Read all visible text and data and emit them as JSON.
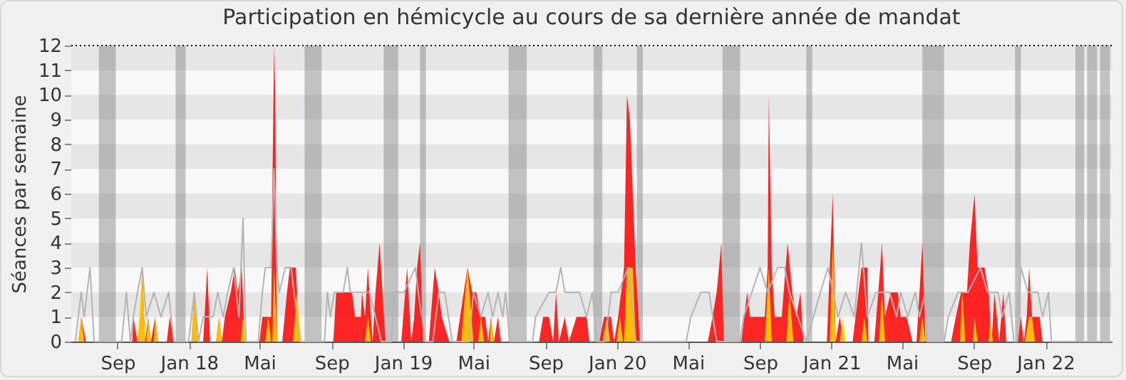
{
  "chart_data": {
    "type": "area",
    "title": "Participation en hémicycle au cours de sa dernière année de mandat",
    "ylabel": "Séances par semaine",
    "xlim": [
      "2017-06-14",
      "2022-04-24"
    ],
    "xticks": [
      {
        "value": "2017-09-01",
        "label": "Sep"
      },
      {
        "value": "2018-01-01",
        "label": "Jan 18"
      },
      {
        "value": "2018-05-01",
        "label": "Mai"
      },
      {
        "value": "2018-09-01",
        "label": "Sep"
      },
      {
        "value": "2019-01-01",
        "label": "Jan 19"
      },
      {
        "value": "2019-05-01",
        "label": "Mai"
      },
      {
        "value": "2019-09-01",
        "label": "Sep"
      },
      {
        "value": "2020-01-01",
        "label": "Jan 20"
      },
      {
        "value": "2020-05-01",
        "label": "Mai"
      },
      {
        "value": "2020-09-01",
        "label": "Sep"
      },
      {
        "value": "2021-01-01",
        "label": "Jan 21"
      },
      {
        "value": "2021-05-01",
        "label": "Mai"
      },
      {
        "value": "2021-09-01",
        "label": "Sep"
      },
      {
        "value": "2022-01-01",
        "label": "Jan 22"
      }
    ],
    "ylim": [
      0,
      12
    ],
    "yticks": [
      0,
      1,
      2,
      3,
      4,
      5,
      6,
      7,
      8,
      9,
      10,
      11,
      12
    ],
    "grid": "y",
    "bands": [
      {
        "axis": "x",
        "from": "2017-07-31",
        "to": "2017-08-29",
        "color": "#808080"
      },
      {
        "axis": "x",
        "from": "2017-12-09",
        "to": "2017-12-26",
        "color": "#808080"
      },
      {
        "axis": "x",
        "from": "2018-07-17",
        "to": "2018-08-15",
        "color": "#808080"
      },
      {
        "axis": "x",
        "from": "2018-11-29",
        "to": "2018-12-24",
        "color": "#808080"
      },
      {
        "axis": "x",
        "from": "2019-01-30",
        "to": "2019-02-09",
        "color": "#808080"
      },
      {
        "axis": "x",
        "from": "2019-06-30",
        "to": "2019-07-31",
        "color": "#808080"
      },
      {
        "axis": "x",
        "from": "2019-11-22",
        "to": "2019-12-07",
        "color": "#808080"
      },
      {
        "axis": "x",
        "from": "2020-02-04",
        "to": "2020-02-14",
        "color": "#808080"
      },
      {
        "axis": "x",
        "from": "2020-06-29",
        "to": "2020-07-29",
        "color": "#808080"
      },
      {
        "axis": "x",
        "from": "2020-11-19",
        "to": "2020-11-29",
        "color": "#808080"
      },
      {
        "axis": "x",
        "from": "2021-06-05",
        "to": "2021-07-12",
        "color": "#808080"
      },
      {
        "axis": "x",
        "from": "2021-11-10",
        "to": "2021-11-20",
        "color": "#808080"
      },
      {
        "axis": "x",
        "from": "2022-02-21",
        "to": "2022-03-08",
        "color": "#808080"
      },
      {
        "axis": "x",
        "from": "2022-03-13",
        "to": "2022-03-30",
        "color": "#808080"
      },
      {
        "axis": "x",
        "from": "2022-04-04",
        "to": "2022-04-21",
        "color": "#808080"
      }
    ],
    "series": [
      {
        "type": "line",
        "color": "#b4b4b4",
        "x": [
          "2017-06-21",
          "2017-07-01",
          "2017-07-06",
          "2017-07-16",
          "2017-07-23",
          "2017-09-08",
          "2017-09-16",
          "2017-09-23",
          "2017-09-28",
          "2017-10-05",
          "2017-10-13",
          "2017-10-20",
          "2017-11-02",
          "2017-11-14",
          "2017-11-27",
          "2017-12-06",
          "2017-12-31",
          "2018-01-10",
          "2018-01-17",
          "2018-01-25",
          "2018-02-11",
          "2018-02-19",
          "2018-02-28",
          "2018-03-08",
          "2018-03-18",
          "2018-03-27",
          "2018-04-03",
          "2018-04-08",
          "2018-04-29",
          "2018-05-06",
          "2018-05-11",
          "2018-05-21",
          "2018-05-26",
          "2018-05-31",
          "2018-06-04",
          "2018-06-14",
          "2018-06-24",
          "2018-07-09",
          "2018-08-20",
          "2018-08-25",
          "2018-08-30",
          "2018-09-06",
          "2018-09-21",
          "2018-09-28",
          "2018-10-03",
          "2018-10-21",
          "2018-11-05",
          "2018-11-25",
          "2018-12-12",
          "2018-12-17",
          "2019-01-03",
          "2019-01-22",
          "2019-01-27",
          "2019-02-08",
          "2019-02-21",
          "2019-03-03",
          "2019-03-13",
          "2019-03-26",
          "2019-04-24",
          "2019-05-01",
          "2019-05-14",
          "2019-05-26",
          "2019-06-03",
          "2019-06-12",
          "2019-06-20",
          "2019-06-25",
          "2019-07-02",
          "2019-08-10",
          "2019-08-15",
          "2019-09-07",
          "2019-09-19",
          "2019-09-27",
          "2019-10-04",
          "2019-10-29",
          "2019-11-10",
          "2019-11-20",
          "2019-11-28",
          "2019-12-12",
          "2019-12-22",
          "2020-01-03",
          "2020-01-20",
          "2020-02-02",
          "2020-04-28",
          "2020-05-06",
          "2020-05-23",
          "2020-06-06",
          "2020-06-19",
          "2020-07-29",
          "2020-08-04",
          "2020-09-01",
          "2020-09-14",
          "2020-10-01",
          "2020-10-13",
          "2020-10-21",
          "2020-11-19",
          "2020-12-01",
          "2020-12-13",
          "2020-12-26",
          "2021-01-12",
          "2021-01-25",
          "2021-02-09",
          "2021-02-21",
          "2021-03-03",
          "2021-03-18",
          "2021-04-10",
          "2021-04-22",
          "2021-04-29",
          "2021-05-11",
          "2021-05-24",
          "2021-05-31",
          "2021-06-10",
          "2021-06-13",
          "2021-07-12",
          "2021-07-19",
          "2021-08-05",
          "2021-08-22",
          "2021-09-12",
          "2021-09-24",
          "2021-10-12",
          "2021-10-19",
          "2021-10-31",
          "2021-11-08",
          "2021-11-13",
          "2021-11-20",
          "2021-12-02",
          "2021-12-19",
          "2021-12-27",
          "2022-01-06",
          "2022-01-11",
          "2022-04-24"
        ],
        "values": [
          0,
          2,
          1,
          3,
          0,
          0,
          2,
          0,
          1,
          2,
          3,
          1,
          2,
          1,
          2,
          0,
          0,
          2,
          0,
          1,
          1,
          2,
          1,
          2,
          3,
          1,
          5,
          0,
          0,
          2,
          3,
          3,
          7,
          3,
          2,
          3,
          3,
          0,
          0,
          2,
          1,
          2,
          2,
          3,
          2,
          2,
          2,
          0,
          0,
          2,
          2,
          3,
          2,
          0,
          0,
          2,
          2,
          0,
          0,
          2,
          1,
          2,
          1,
          2,
          1,
          2,
          0,
          0,
          1,
          2,
          2,
          3,
          2,
          2,
          1,
          2,
          0,
          0,
          2,
          2,
          3,
          0,
          0,
          1,
          2,
          2,
          0,
          0,
          1,
          3,
          2,
          3,
          3,
          2,
          0,
          1,
          2,
          3,
          1,
          2,
          1,
          4,
          1,
          2,
          2,
          1,
          2,
          1,
          2,
          1,
          2,
          0,
          0,
          1,
          2,
          2,
          3,
          2,
          2,
          1,
          2,
          0,
          0,
          3,
          2,
          2,
          1,
          2,
          0,
          0
        ]
      },
      {
        "type": "area",
        "color": "#ff0000",
        "x": [
          "2017-06-14",
          "2017-06-26",
          "2017-07-01",
          "2017-07-09",
          "2017-09-26",
          "2017-09-28",
          "2017-10-05",
          "2017-10-10",
          "2017-10-13",
          "2017-10-18",
          "2017-10-23",
          "2017-10-28",
          "2017-11-04",
          "2017-11-09",
          "2017-11-24",
          "2017-11-29",
          "2017-12-06",
          "2018-01-05",
          "2018-01-10",
          "2018-01-15",
          "2018-01-25",
          "2018-02-01",
          "2018-02-06",
          "2018-02-16",
          "2018-02-21",
          "2018-02-26",
          "2018-03-03",
          "2018-03-13",
          "2018-03-20",
          "2018-03-25",
          "2018-04-01",
          "2018-04-06",
          "2018-05-01",
          "2018-05-06",
          "2018-05-16",
          "2018-05-21",
          "2018-05-23",
          "2018-05-26",
          "2018-05-28",
          "2018-05-31",
          "2018-06-09",
          "2018-06-17",
          "2018-06-22",
          "2018-07-02",
          "2018-07-09",
          "2018-09-04",
          "2018-09-09",
          "2018-10-06",
          "2018-10-11",
          "2018-10-21",
          "2018-10-23",
          "2018-10-28",
          "2018-11-02",
          "2018-11-10",
          "2018-11-15",
          "2018-11-22",
          "2018-12-02",
          "2018-12-29",
          "2019-01-08",
          "2019-01-15",
          "2019-01-20",
          "2019-01-25",
          "2019-01-30",
          "2019-02-04",
          "2019-02-14",
          "2019-02-24",
          "2019-03-03",
          "2019-03-08",
          "2019-03-21",
          "2019-04-02",
          "2019-04-21",
          "2019-04-29",
          "2019-05-06",
          "2019-05-14",
          "2019-05-21",
          "2019-05-26",
          "2019-05-31",
          "2019-06-05",
          "2019-06-12",
          "2019-06-17",
          "2019-08-21",
          "2019-08-28",
          "2019-09-07",
          "2019-09-14",
          "2019-09-19",
          "2019-09-24",
          "2019-10-04",
          "2019-10-11",
          "2019-10-24",
          "2019-11-10",
          "2019-11-15",
          "2019-12-02",
          "2019-12-10",
          "2019-12-22",
          "2019-12-27",
          "2020-01-03",
          "2020-01-13",
          "2020-01-18",
          "2020-01-23",
          "2020-01-28",
          "2020-02-02",
          "2020-02-09",
          "2020-06-04",
          "2020-06-12",
          "2020-06-19",
          "2020-06-27",
          "2020-07-01",
          "2020-07-31",
          "2020-08-10",
          "2020-08-15",
          "2020-09-09",
          "2020-09-14",
          "2020-09-16",
          "2020-09-21",
          "2020-09-26",
          "2020-10-08",
          "2020-10-18",
          "2020-10-26",
          "2020-11-02",
          "2020-11-09",
          "2020-11-14",
          "2020-12-24",
          "2021-01-03",
          "2021-01-08",
          "2021-01-15",
          "2021-01-22",
          "2021-02-06",
          "2021-02-16",
          "2021-02-21",
          "2021-03-03",
          "2021-03-05",
          "2021-03-15",
          "2021-03-25",
          "2021-03-28",
          "2021-04-02",
          "2021-04-12",
          "2021-04-24",
          "2021-04-29",
          "2021-05-09",
          "2021-05-19",
          "2021-05-26",
          "2021-06-05",
          "2021-06-10",
          "2021-07-24",
          "2021-08-01",
          "2021-08-10",
          "2021-08-20",
          "2021-08-25",
          "2021-09-02",
          "2021-09-07",
          "2021-09-19",
          "2021-09-26",
          "2021-10-01",
          "2021-10-06",
          "2021-10-14",
          "2021-10-21",
          "2021-10-26",
          "2021-11-15",
          "2021-11-20",
          "2021-11-25",
          "2021-11-30",
          "2021-12-04",
          "2021-12-09",
          "2021-12-22",
          "2021-12-27",
          "2022-04-24"
        ],
        "values": [
          0,
          0,
          1,
          0,
          0,
          1,
          0,
          1,
          3,
          0,
          1,
          0,
          1,
          0,
          0,
          1,
          0,
          0,
          2,
          0,
          0,
          3,
          0,
          0,
          1,
          0,
          1,
          2,
          3,
          2,
          3,
          0,
          0,
          1,
          1,
          1,
          6,
          12,
          10,
          0,
          0,
          2,
          3,
          3,
          0,
          0,
          2,
          2,
          1,
          1,
          2,
          1,
          3,
          0,
          2,
          4,
          0,
          0,
          3,
          0,
          1,
          3,
          4,
          0,
          0,
          3,
          2,
          1,
          0,
          0,
          3,
          2,
          2,
          1,
          1,
          0,
          1,
          0,
          1,
          0,
          0,
          1,
          1,
          0,
          2,
          0,
          1,
          0,
          1,
          1,
          0,
          0,
          1,
          1,
          0,
          1,
          3,
          10,
          9,
          6,
          3,
          0,
          0,
          1,
          2,
          4,
          0,
          0,
          2,
          1,
          1,
          3,
          10,
          3,
          1,
          1,
          4,
          2,
          1,
          2,
          0,
          0,
          6,
          0,
          1,
          0,
          0,
          2,
          3,
          3,
          0,
          0,
          3,
          4,
          1,
          2,
          2,
          1,
          1,
          0,
          0,
          4,
          0,
          0,
          1,
          2,
          2,
          4,
          6,
          3,
          3,
          2,
          0,
          2,
          0,
          2,
          0,
          0,
          1,
          0,
          1,
          3,
          1,
          1,
          0,
          0
        ]
      },
      {
        "type": "area",
        "color": "#ffd700",
        "x": [
          "2017-06-14",
          "2017-06-26",
          "2017-07-01",
          "2017-07-06",
          "2017-10-05",
          "2017-10-13",
          "2017-10-18",
          "2017-10-20",
          "2017-10-23",
          "2017-10-28",
          "2017-11-02",
          "2017-11-04",
          "2017-11-09",
          "2018-01-05",
          "2018-01-10",
          "2018-01-15",
          "2018-02-16",
          "2018-02-21",
          "2018-02-26",
          "2018-03-30",
          "2018-04-03",
          "2018-04-08",
          "2018-05-11",
          "2018-05-16",
          "2018-05-21",
          "2018-05-23",
          "2018-05-26",
          "2018-05-31",
          "2018-06-27",
          "2018-07-04",
          "2018-07-12",
          "2018-10-28",
          "2018-11-02",
          "2018-11-07",
          "2019-04-10",
          "2019-04-21",
          "2019-05-01",
          "2019-05-09",
          "2019-05-14",
          "2019-05-19",
          "2019-05-29",
          "2019-05-31",
          "2019-06-05",
          "2019-12-07",
          "2019-12-15",
          "2019-12-20",
          "2019-12-31",
          "2020-01-06",
          "2020-01-11",
          "2020-01-13",
          "2020-01-18",
          "2020-01-28",
          "2020-02-02",
          "2020-09-09",
          "2020-09-16",
          "2020-09-21",
          "2020-10-16",
          "2020-10-21",
          "2020-10-28",
          "2020-12-29",
          "2021-01-03",
          "2021-01-08",
          "2021-01-15",
          "2021-01-20",
          "2021-01-25",
          "2021-02-21",
          "2021-02-26",
          "2021-03-03",
          "2021-03-23",
          "2021-03-28",
          "2021-04-02",
          "2021-05-31",
          "2021-06-05",
          "2021-06-10",
          "2021-08-08",
          "2021-08-12",
          "2021-08-17",
          "2021-08-30",
          "2021-09-02",
          "2021-09-07",
          "2021-09-26",
          "2021-09-29",
          "2021-10-03",
          "2021-11-27",
          "2021-12-04",
          "2021-12-09",
          "2021-12-14",
          "2022-04-24"
        ],
        "values": [
          0,
          0,
          1,
          0,
          0,
          3,
          0,
          0,
          1,
          0,
          0,
          1,
          0,
          0,
          2,
          0,
          0,
          1,
          0,
          0,
          1,
          0,
          0,
          1,
          0,
          0,
          3,
          0,
          0,
          2,
          0,
          0,
          1,
          0,
          0,
          3,
          0,
          0,
          1,
          0,
          0,
          1,
          0,
          0,
          1,
          0,
          0,
          1,
          0,
          0,
          3,
          3,
          0,
          0,
          3,
          0,
          0,
          2,
          0,
          0,
          4,
          0,
          0,
          1,
          0,
          0,
          1,
          0,
          0,
          2,
          0,
          0,
          1,
          0,
          0,
          2,
          0,
          0,
          1,
          0,
          0,
          1,
          0,
          0,
          1,
          1,
          0,
          0
        ]
      }
    ]
  }
}
